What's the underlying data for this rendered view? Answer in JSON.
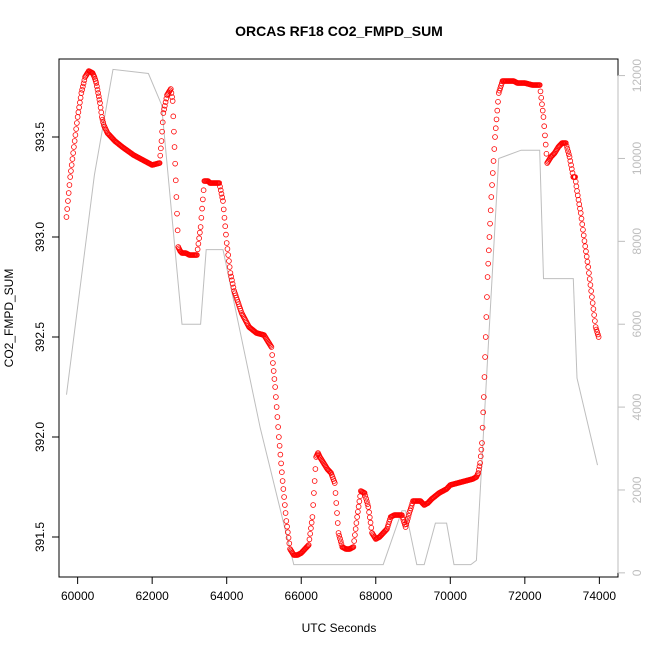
{
  "chart_data": {
    "type": "scatter",
    "title": "ORCAS RF18 CO2_FMPD_SUM",
    "xlabel": "UTC Seconds",
    "ylabel": "CO2_FMPD_SUM",
    "xlim": [
      59500,
      74500
    ],
    "ylim": [
      391.3,
      393.89
    ],
    "y2lim": [
      -100,
      12400
    ],
    "x_ticks": [
      60000,
      62000,
      64000,
      66000,
      68000,
      70000,
      72000,
      74000
    ],
    "x_tick_labels": [
      "60000",
      "62000",
      "64000",
      "66000",
      "68000",
      "70000",
      "72000",
      "74000"
    ],
    "y_ticks": [
      391.5,
      392.0,
      392.5,
      393.0,
      393.5
    ],
    "y_tick_labels": [
      "391.5",
      "392.0",
      "392.5",
      "393.0",
      "393.5"
    ],
    "y2_ticks": [
      0,
      2000,
      4000,
      6000,
      8000,
      10000,
      12000
    ],
    "y2_tick_labels": [
      "0",
      "2000",
      "4000",
      "6000",
      "8000",
      "10000",
      "12000"
    ],
    "grid": false,
    "legend": "none",
    "series": [
      {
        "role": "CO2 points (left axis)",
        "color": "#ff0000",
        "marker": "open-circle",
        "x": [
          59700,
          59800,
          59900,
          60000,
          60100,
          60200,
          60300,
          60400,
          60450,
          60500,
          60550,
          60600,
          60650,
          60700,
          60800,
          61000,
          61200,
          61500,
          61800,
          62000,
          62200,
          62250,
          62300,
          62400,
          62500,
          62550,
          62600,
          62650,
          62700,
          62750,
          62800,
          62900,
          63000,
          63200,
          63300,
          63400,
          63500,
          63550,
          63600,
          63700,
          63800,
          63900,
          64000,
          64100,
          64200,
          64400,
          64600,
          64800,
          65000,
          65200,
          65300,
          65400,
          65500,
          65600,
          65700,
          65800,
          65900,
          66000,
          66100,
          66200,
          66300,
          66400,
          66450,
          66500,
          66600,
          66700,
          66800,
          66900,
          67000,
          67100,
          67200,
          67300,
          67400,
          67500,
          67600,
          67700,
          67800,
          67900,
          68000,
          68100,
          68200,
          68300,
          68400,
          68500,
          68600,
          68700,
          68800,
          68900,
          69000,
          69100,
          69200,
          69300,
          69400,
          69500,
          69700,
          69900,
          70000,
          70200,
          70400,
          70600,
          70700,
          70750,
          70800,
          70850,
          70900,
          70950,
          71000,
          71050,
          71100,
          71200,
          71300,
          71400,
          71500,
          71600,
          71700,
          71800,
          72000,
          72200,
          72400,
          72500,
          72600,
          72700,
          72800,
          72900,
          73000,
          73100,
          73200,
          73300,
          73350,
          73400,
          73500,
          73600,
          73700,
          73800,
          73900,
          73980
        ],
        "y": [
          393.1,
          393.3,
          393.45,
          393.6,
          393.72,
          393.8,
          393.83,
          393.82,
          393.8,
          393.77,
          393.72,
          393.67,
          393.6,
          393.56,
          393.52,
          393.48,
          393.45,
          393.41,
          393.38,
          393.36,
          393.37,
          393.48,
          393.62,
          393.71,
          393.74,
          393.68,
          393.45,
          393.2,
          392.95,
          392.93,
          392.92,
          392.92,
          392.91,
          392.91,
          393.05,
          393.28,
          393.28,
          393.27,
          393.27,
          393.27,
          393.27,
          393.18,
          392.97,
          392.82,
          392.73,
          392.62,
          392.55,
          392.52,
          392.51,
          392.45,
          392.25,
          392.0,
          391.78,
          391.58,
          391.44,
          391.41,
          391.41,
          391.42,
          391.44,
          391.46,
          391.6,
          391.9,
          391.92,
          391.9,
          391.87,
          391.84,
          391.82,
          391.77,
          391.52,
          391.45,
          391.44,
          391.44,
          391.45,
          391.6,
          391.73,
          391.72,
          391.65,
          391.52,
          391.49,
          391.5,
          391.52,
          391.54,
          391.6,
          391.61,
          391.61,
          391.61,
          391.55,
          391.62,
          391.68,
          391.68,
          391.68,
          391.66,
          391.67,
          391.69,
          391.72,
          391.74,
          391.76,
          391.77,
          391.78,
          391.79,
          391.8,
          391.82,
          391.87,
          391.97,
          392.2,
          392.5,
          392.8,
          393.0,
          393.2,
          393.5,
          393.72,
          393.78,
          393.78,
          393.78,
          393.78,
          393.77,
          393.77,
          393.76,
          393.76,
          393.6,
          393.37,
          393.4,
          393.42,
          393.45,
          393.47,
          393.47,
          393.4,
          393.3,
          393.3,
          393.23,
          393.12,
          392.98,
          392.85,
          392.7,
          392.55,
          392.5
        ]
      },
      {
        "role": "altitude line (right axis)",
        "color": "#bebebe",
        "x": [
          59700,
          60450,
          60950,
          61900,
          62250,
          62800,
          62900,
          63300,
          63450,
          63900,
          64900,
          65800,
          66700,
          67800,
          68200,
          68700,
          68800,
          69100,
          69300,
          69600,
          69900,
          70100,
          70550,
          70700,
          71300,
          71900,
          72400,
          72500,
          73300,
          73400,
          73950
        ],
        "y": [
          4300,
          9600,
          12150,
          12050,
          11300,
          6000,
          6000,
          6000,
          7800,
          7800,
          3500,
          200,
          200,
          200,
          200,
          1500,
          1500,
          200,
          200,
          1200,
          1200,
          200,
          200,
          300,
          10000,
          10200,
          10200,
          7100,
          7100,
          4700,
          2600
        ]
      }
    ]
  }
}
